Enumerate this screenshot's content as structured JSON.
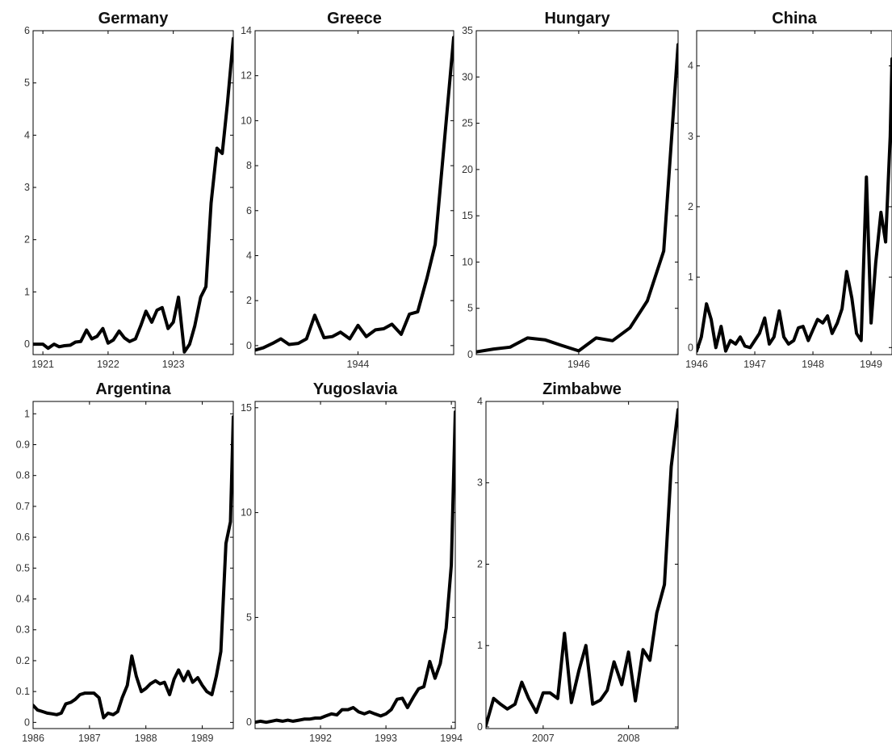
{
  "chart_data": [
    {
      "type": "line",
      "title": "Germany",
      "xlim": [
        1920.85,
        1923.92
      ],
      "ylim": [
        -0.2,
        6
      ],
      "xticks": [
        {
          "v": 1921,
          "label": "1921"
        },
        {
          "v": 1922,
          "label": "1922"
        },
        {
          "v": 1923,
          "label": "1923"
        }
      ],
      "yticks": [
        {
          "v": 0,
          "label": "0"
        },
        {
          "v": 1,
          "label": "1"
        },
        {
          "v": 2,
          "label": "2"
        },
        {
          "v": 3,
          "label": "3"
        },
        {
          "v": 4,
          "label": "4"
        },
        {
          "v": 5,
          "label": "5"
        },
        {
          "v": 6,
          "label": "6"
        }
      ],
      "ytick_side": "left",
      "series": [
        {
          "x": [
            1920.85,
            1921.0,
            1921.08,
            1921.17,
            1921.25,
            1921.33,
            1921.42,
            1921.5,
            1921.58,
            1921.67,
            1921.75,
            1921.83,
            1921.92,
            1922.0,
            1922.08,
            1922.17,
            1922.25,
            1922.33,
            1922.42,
            1922.5,
            1922.58,
            1922.67,
            1922.75,
            1922.83,
            1922.92,
            1923.0,
            1923.08,
            1923.17,
            1923.25,
            1923.33,
            1923.42,
            1923.5,
            1923.58,
            1923.67,
            1923.75,
            1923.83,
            1923.92
          ],
          "y": [
            0.0,
            0.0,
            -0.08,
            0.0,
            -0.05,
            -0.03,
            -0.02,
            0.04,
            0.05,
            0.27,
            0.1,
            0.15,
            0.3,
            0.02,
            0.08,
            0.25,
            0.12,
            0.05,
            0.1,
            0.35,
            0.63,
            0.42,
            0.65,
            0.7,
            0.3,
            0.42,
            0.9,
            -0.15,
            0.0,
            0.35,
            0.9,
            1.1,
            2.7,
            3.75,
            3.65,
            4.6,
            5.85
          ]
        }
      ]
    },
    {
      "type": "line",
      "title": "Greece",
      "xlim": [
        1943.0,
        1944.93
      ],
      "ylim": [
        -0.4,
        14
      ],
      "xticks": [
        {
          "v": 1944,
          "label": "1944"
        }
      ],
      "yticks": [
        {
          "v": 0,
          "label": "0"
        },
        {
          "v": 2,
          "label": "2"
        },
        {
          "v": 4,
          "label": "4"
        },
        {
          "v": 6,
          "label": "6"
        },
        {
          "v": 8,
          "label": "8"
        },
        {
          "v": 10,
          "label": "10"
        },
        {
          "v": 12,
          "label": "12"
        },
        {
          "v": 14,
          "label": "14"
        }
      ],
      "ytick_side": "left",
      "series": [
        {
          "x": [
            1943.0,
            1943.08,
            1943.17,
            1943.25,
            1943.33,
            1943.42,
            1943.5,
            1943.58,
            1943.67,
            1943.75,
            1943.83,
            1943.92,
            1944.0,
            1944.08,
            1944.17,
            1944.25,
            1944.33,
            1944.42,
            1944.5,
            1944.58,
            1944.67,
            1944.75,
            1944.93
          ],
          "y": [
            -0.2,
            -0.1,
            0.1,
            0.3,
            0.05,
            0.1,
            0.3,
            1.35,
            0.35,
            0.4,
            0.6,
            0.3,
            0.9,
            0.4,
            0.7,
            0.75,
            0.95,
            0.5,
            1.4,
            1.5,
            3.0,
            4.5,
            13.7
          ]
        }
      ]
    },
    {
      "type": "line",
      "title": "Hungary",
      "xlim": [
        1945.0,
        1946.97
      ],
      "ylim": [
        0,
        35
      ],
      "xticks": [
        {
          "v": 1946,
          "label": "1946"
        }
      ],
      "yticks": [
        {
          "v": 0,
          "label": "0"
        },
        {
          "v": 5,
          "label": "5"
        },
        {
          "v": 10,
          "label": "10"
        },
        {
          "v": 15,
          "label": "15"
        },
        {
          "v": 20,
          "label": "20"
        },
        {
          "v": 25,
          "label": "25"
        },
        {
          "v": 30,
          "label": "30"
        },
        {
          "v": 35,
          "label": "35"
        }
      ],
      "ytick_side": "left",
      "series": [
        {
          "x": [
            1945.0,
            1945.17,
            1945.33,
            1945.5,
            1945.67,
            1945.83,
            1946.0,
            1946.17,
            1946.33,
            1946.5,
            1946.67,
            1946.83,
            1946.97
          ],
          "y": [
            0.3,
            0.6,
            0.8,
            1.8,
            1.6,
            1.0,
            0.4,
            1.8,
            1.5,
            2.9,
            5.8,
            11.2,
            33.5
          ]
        }
      ]
    },
    {
      "type": "line",
      "title": "China",
      "xlim": [
        1946.0,
        1949.36
      ],
      "ylim": [
        -0.1,
        4.5
      ],
      "xticks": [
        {
          "v": 1946,
          "label": "1946"
        },
        {
          "v": 1947,
          "label": "1947"
        },
        {
          "v": 1948,
          "label": "1948"
        },
        {
          "v": 1949,
          "label": "1949"
        }
      ],
      "yticks": [
        {
          "v": 0,
          "label": "0"
        },
        {
          "v": 1,
          "label": "1"
        },
        {
          "v": 2,
          "label": "2"
        },
        {
          "v": 3,
          "label": "3"
        },
        {
          "v": 4,
          "label": "4"
        }
      ],
      "ytick_side": "left",
      "series": [
        {
          "x": [
            1946.0,
            1946.08,
            1946.17,
            1946.25,
            1946.33,
            1946.42,
            1946.5,
            1946.58,
            1946.67,
            1946.75,
            1946.83,
            1946.92,
            1947.0,
            1947.08,
            1947.17,
            1947.25,
            1947.33,
            1947.42,
            1947.5,
            1947.58,
            1947.67,
            1947.75,
            1947.83,
            1947.92,
            1948.0,
            1948.08,
            1948.17,
            1948.25,
            1948.33,
            1948.42,
            1948.5,
            1948.58,
            1948.67,
            1948.75,
            1948.83,
            1948.92,
            1949.0,
            1949.08,
            1949.17,
            1949.25,
            1949.33,
            1949.36
          ],
          "y": [
            -0.05,
            0.15,
            0.62,
            0.4,
            0.0,
            0.3,
            -0.05,
            0.1,
            0.05,
            0.15,
            0.02,
            0.0,
            0.1,
            0.2,
            0.42,
            0.05,
            0.15,
            0.52,
            0.15,
            0.05,
            0.1,
            0.28,
            0.3,
            0.1,
            0.25,
            0.4,
            0.35,
            0.45,
            0.2,
            0.35,
            0.55,
            1.08,
            0.7,
            0.2,
            0.1,
            2.42,
            0.35,
            1.2,
            1.92,
            1.5,
            3.0,
            4.1
          ]
        }
      ]
    },
    {
      "type": "line",
      "title": "Argentina",
      "xlim": [
        1986.0,
        1989.55
      ],
      "ylim": [
        -0.02,
        1.04
      ],
      "xticks": [
        {
          "v": 1986,
          "label": "1986"
        },
        {
          "v": 1987,
          "label": "1987"
        },
        {
          "v": 1988,
          "label": "1988"
        },
        {
          "v": 1989,
          "label": "1989"
        }
      ],
      "yticks": [
        {
          "v": 0,
          "label": "0"
        },
        {
          "v": 0.1,
          "label": "0.1"
        },
        {
          "v": 0.2,
          "label": "0.2"
        },
        {
          "v": 0.3,
          "label": "0.3"
        },
        {
          "v": 0.4,
          "label": "0.4"
        },
        {
          "v": 0.5,
          "label": "0.5"
        },
        {
          "v": 0.6,
          "label": "0.6"
        },
        {
          "v": 0.7,
          "label": "0.7"
        },
        {
          "v": 0.8,
          "label": "0.8"
        },
        {
          "v": 0.9,
          "label": "0.9"
        },
        {
          "v": 1,
          "label": "1"
        }
      ],
      "ytick_side": "left",
      "series": [
        {
          "x": [
            1986.0,
            1986.08,
            1986.17,
            1986.25,
            1986.33,
            1986.42,
            1986.5,
            1986.58,
            1986.67,
            1986.75,
            1986.83,
            1986.92,
            1987.0,
            1987.08,
            1987.17,
            1987.25,
            1987.33,
            1987.42,
            1987.5,
            1987.58,
            1987.67,
            1987.75,
            1987.83,
            1987.92,
            1988.0,
            1988.08,
            1988.17,
            1988.25,
            1988.33,
            1988.42,
            1988.5,
            1988.58,
            1988.67,
            1988.75,
            1988.83,
            1988.92,
            1989.0,
            1989.08,
            1989.17,
            1989.25,
            1989.33,
            1989.42,
            1989.5,
            1989.55
          ],
          "y": [
            0.055,
            0.04,
            0.035,
            0.03,
            0.028,
            0.025,
            0.03,
            0.06,
            0.065,
            0.075,
            0.09,
            0.095,
            0.095,
            0.095,
            0.08,
            0.015,
            0.03,
            0.025,
            0.035,
            0.08,
            0.12,
            0.215,
            0.15,
            0.1,
            0.11,
            0.125,
            0.135,
            0.125,
            0.13,
            0.09,
            0.14,
            0.17,
            0.135,
            0.165,
            0.13,
            0.145,
            0.12,
            0.1,
            0.09,
            0.15,
            0.23,
            0.58,
            0.65,
            0.99
          ]
        }
      ]
    },
    {
      "type": "line",
      "title": "Yugoslavia",
      "xlim": [
        1991.0,
        1994.06
      ],
      "ylim": [
        -0.3,
        15.3
      ],
      "xticks": [
        {
          "v": 1992,
          "label": "1992"
        },
        {
          "v": 1993,
          "label": "1993"
        },
        {
          "v": 1994,
          "label": "1994"
        }
      ],
      "yticks": [
        {
          "v": 0,
          "label": "0"
        },
        {
          "v": 5,
          "label": "5"
        },
        {
          "v": 10,
          "label": "10"
        },
        {
          "v": 15,
          "label": "15"
        }
      ],
      "ytick_side": "left",
      "series": [
        {
          "x": [
            1991.0,
            1991.08,
            1991.17,
            1991.25,
            1991.33,
            1991.42,
            1991.5,
            1991.58,
            1991.67,
            1991.75,
            1991.83,
            1991.92,
            1992.0,
            1992.08,
            1992.17,
            1992.25,
            1992.33,
            1992.42,
            1992.5,
            1992.58,
            1992.67,
            1992.75,
            1992.83,
            1992.92,
            1993.0,
            1993.08,
            1993.17,
            1993.25,
            1993.33,
            1993.42,
            1993.5,
            1993.58,
            1993.67,
            1993.75,
            1993.83,
            1993.92,
            1994.0,
            1994.06
          ],
          "y": [
            0.0,
            0.05,
            0.0,
            0.05,
            0.1,
            0.05,
            0.1,
            0.05,
            0.1,
            0.15,
            0.15,
            0.2,
            0.2,
            0.3,
            0.4,
            0.35,
            0.6,
            0.6,
            0.7,
            0.5,
            0.4,
            0.5,
            0.4,
            0.3,
            0.4,
            0.6,
            1.1,
            1.15,
            0.7,
            1.2,
            1.6,
            1.7,
            2.9,
            2.1,
            2.8,
            4.5,
            7.5,
            14.8
          ]
        }
      ]
    },
    {
      "type": "line",
      "title": "Zimbabwe",
      "xlim": [
        2006.33,
        2008.58
      ],
      "ylim": [
        -0.02,
        4.0
      ],
      "xticks": [
        {
          "v": 2007,
          "label": "2007"
        },
        {
          "v": 2008,
          "label": "2008"
        }
      ],
      "yticks": [
        {
          "v": 0,
          "label": "0"
        },
        {
          "v": 1,
          "label": "1"
        },
        {
          "v": 2,
          "label": "2"
        },
        {
          "v": 3,
          "label": "3"
        },
        {
          "v": 4,
          "label": "4"
        }
      ],
      "ytick_side": "left",
      "series": [
        {
          "x": [
            2006.33,
            2006.42,
            2006.5,
            2006.58,
            2006.67,
            2006.75,
            2006.83,
            2006.92,
            2007.0,
            2007.08,
            2007.17,
            2007.25,
            2007.33,
            2007.42,
            2007.5,
            2007.58,
            2007.67,
            2007.75,
            2007.83,
            2007.92,
            2008.0,
            2008.08,
            2008.17,
            2008.25,
            2008.33,
            2008.42,
            2008.5,
            2008.58
          ],
          "y": [
            0.02,
            0.35,
            0.28,
            0.22,
            0.28,
            0.55,
            0.35,
            0.18,
            0.42,
            0.42,
            0.35,
            1.15,
            0.3,
            0.7,
            1.0,
            0.28,
            0.33,
            0.45,
            0.8,
            0.52,
            0.92,
            0.32,
            0.95,
            0.82,
            1.4,
            1.75,
            3.2,
            3.9
          ]
        }
      ]
    }
  ]
}
